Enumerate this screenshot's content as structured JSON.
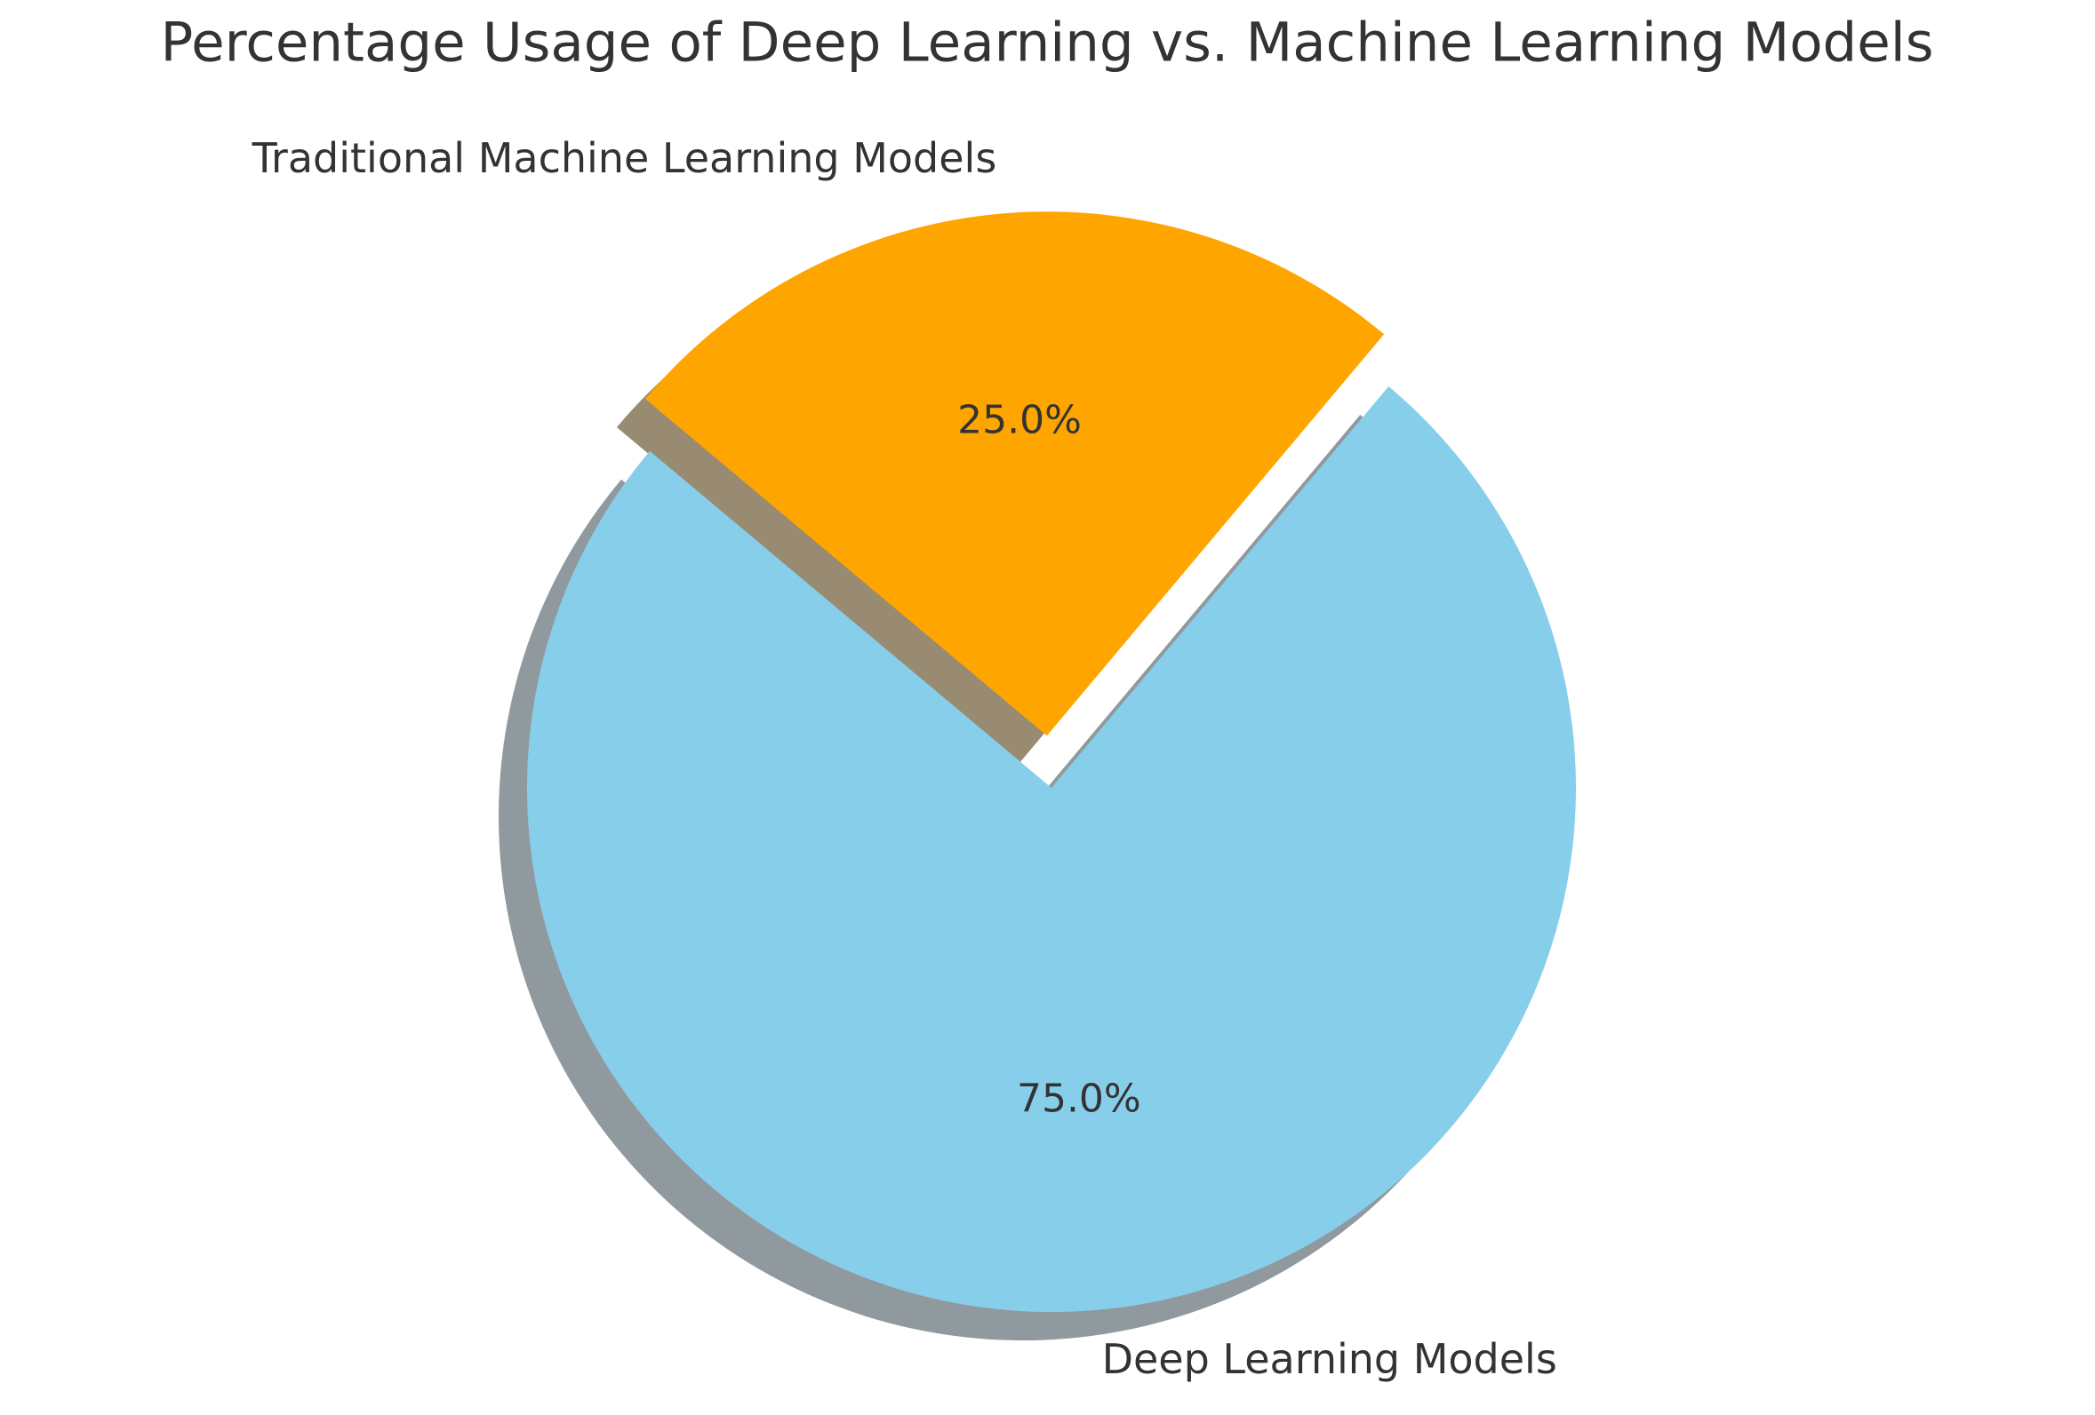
{
  "chart_data": {
    "type": "pie",
    "title": "Percentage Usage of Deep Learning vs. Machine Learning Models",
    "categories": [
      "Deep Learning Models",
      "Traditional Machine Learning Models"
    ],
    "values": [
      75,
      25
    ],
    "value_labels": [
      "75.0%",
      "25.0%"
    ],
    "colors": [
      "#87ceeb",
      "#ffa500"
    ],
    "explode": [
      0,
      0.1
    ],
    "startangle": 140,
    "shadow": true
  }
}
